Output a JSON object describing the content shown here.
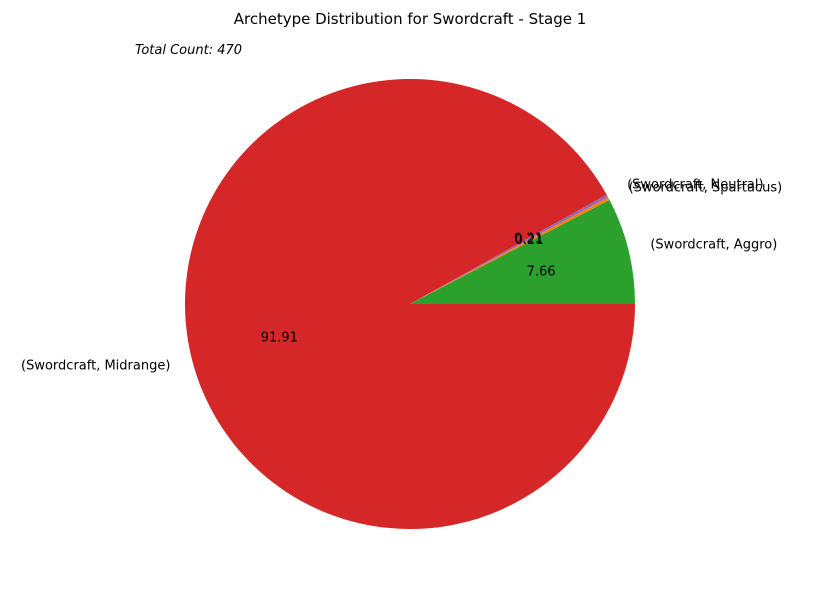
{
  "chart_data": {
    "type": "pie",
    "title": "Archetype Distribution for Swordcraft - Stage 1",
    "annotation": "Total Count: 470",
    "start_angle_deg": 0,
    "direction": "counterclockwise",
    "slices": [
      {
        "label": "(Swordcraft, Aggro)",
        "value": 7.66,
        "pct_label": "7.66",
        "color": "#2ca02c"
      },
      {
        "label": "(Swordcraft, Spartacus)",
        "value": 0.21,
        "pct_label": "0.21",
        "color": "#ff7f0e"
      },
      {
        "label": "(Swordcraft, Neutral)",
        "value": 0.21,
        "pct_label": "0.21",
        "color": "#9467bd"
      },
      {
        "label": "(Swordcraft, Midrange)",
        "value": 91.91,
        "pct_label": "91.91",
        "color": "#d62728"
      }
    ]
  }
}
